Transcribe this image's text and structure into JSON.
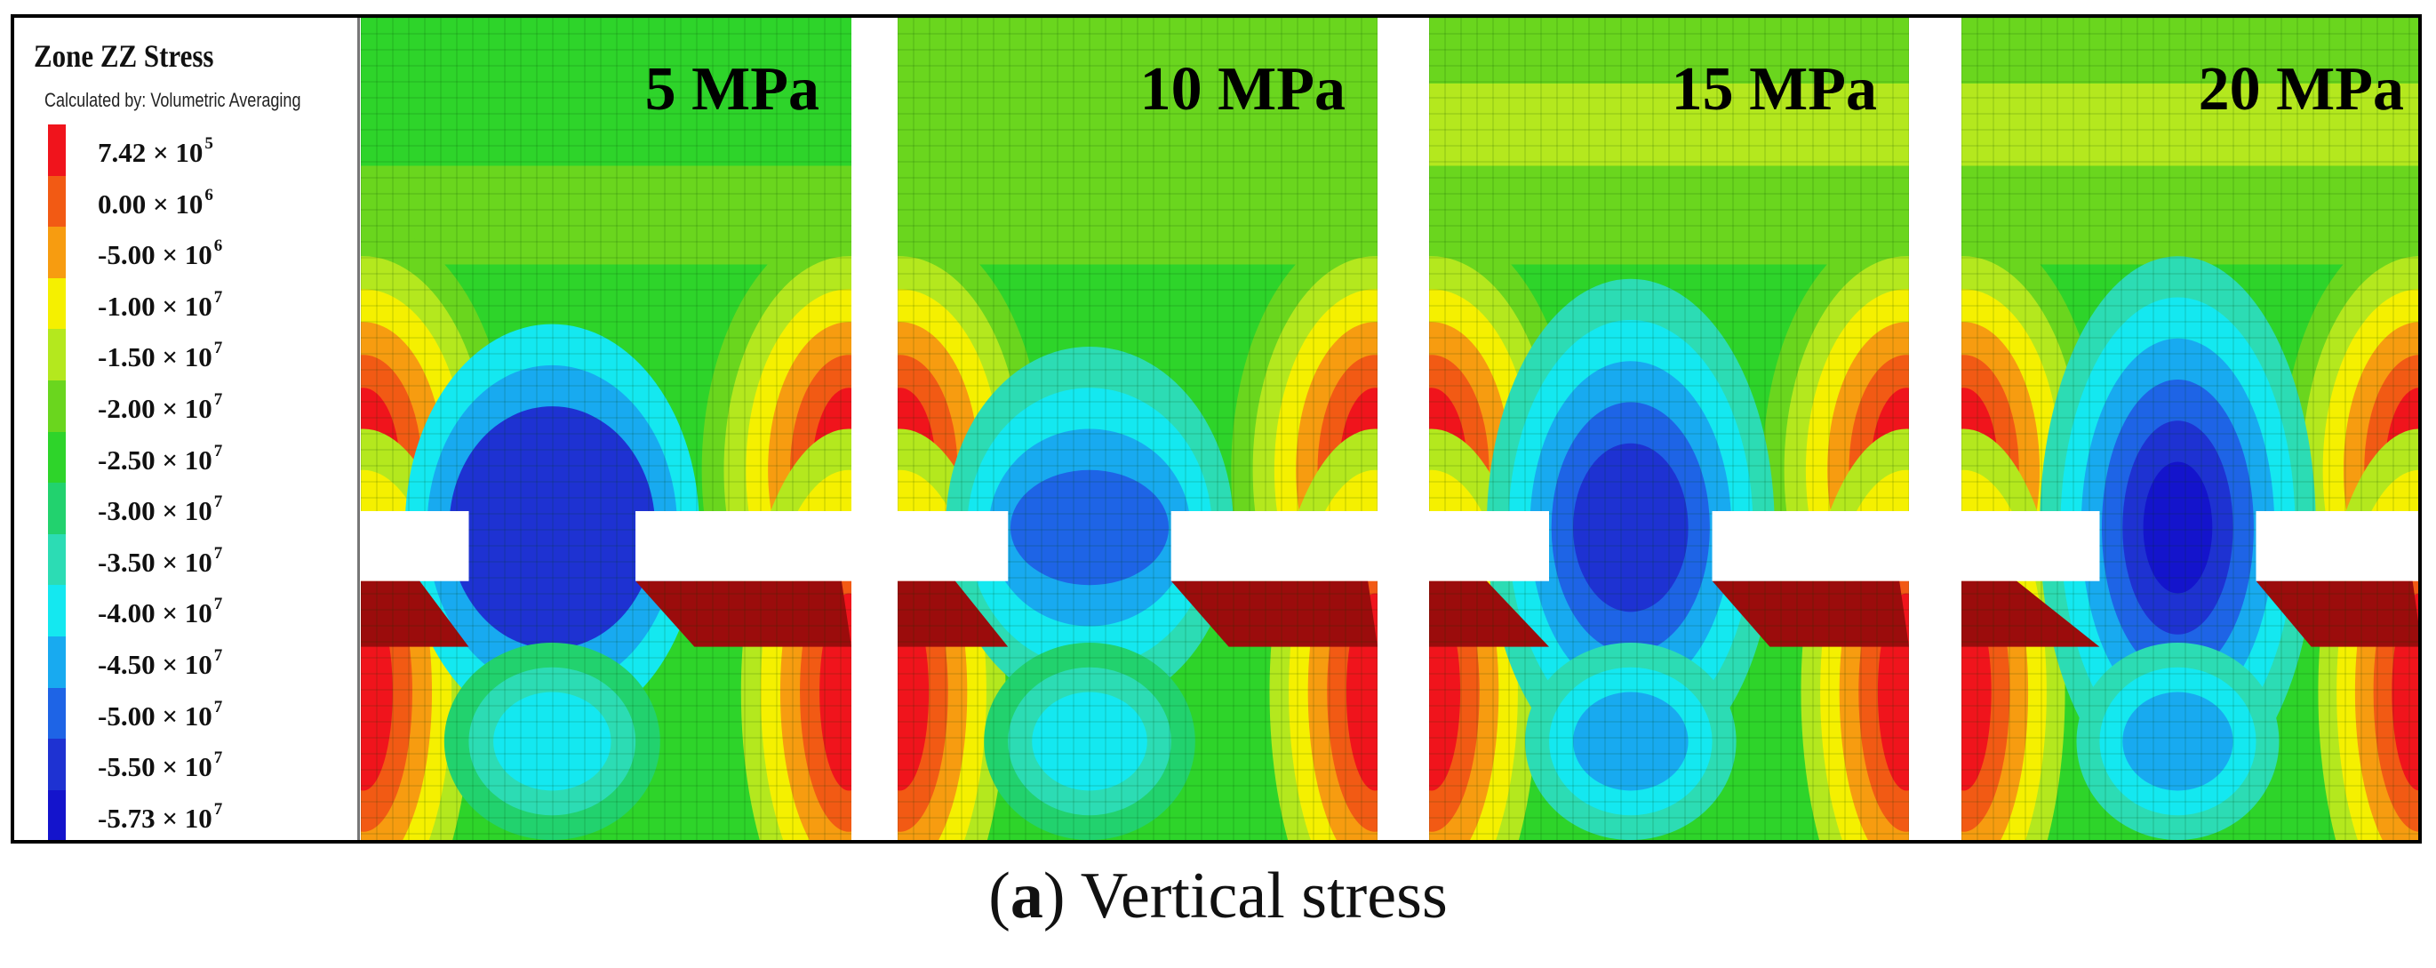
{
  "legend": {
    "title": "Zone ZZ Stress",
    "subtitle": "Calculated by: Volumetric Averaging",
    "entries": [
      {
        "mantissa": "7.42 × 10",
        "exponent": "5",
        "color": "#f0141c"
      },
      {
        "mantissa": "0.00 × 10",
        "exponent": "6",
        "color": "#f25a14"
      },
      {
        "mantissa": "-5.00 × 10",
        "exponent": "6",
        "color": "#f79c10"
      },
      {
        "mantissa": "-1.00 × 10",
        "exponent": "7",
        "color": "#f5f000"
      },
      {
        "mantissa": "-1.50 × 10",
        "exponent": "7",
        "color": "#b4e81e"
      },
      {
        "mantissa": "-2.00 × 10",
        "exponent": "7",
        "color": "#6ad61e"
      },
      {
        "mantissa": "-2.50 × 10",
        "exponent": "7",
        "color": "#2ed42a"
      },
      {
        "mantissa": "-3.00 × 10",
        "exponent": "7",
        "color": "#22d26e"
      },
      {
        "mantissa": "-3.50 × 10",
        "exponent": "7",
        "color": "#2cdcb4"
      },
      {
        "mantissa": "-4.00 × 10",
        "exponent": "7",
        "color": "#14e8f0"
      },
      {
        "mantissa": "-4.50 × 10",
        "exponent": "7",
        "color": "#18aaf0"
      },
      {
        "mantissa": "-5.00 × 10",
        "exponent": "7",
        "color": "#1e64e6"
      },
      {
        "mantissa": "-5.50 × 10",
        "exponent": "7",
        "color": "#1e32d2"
      },
      {
        "mantissa": "-5.73 × 10",
        "exponent": "7",
        "color": "#1414cc"
      }
    ]
  },
  "panels": [
    {
      "label": "5 MPa"
    },
    {
      "label": "10 MPa"
    },
    {
      "label": "15 MPa"
    },
    {
      "label": "20 MPa"
    }
  ],
  "caption": {
    "letter": "a",
    "text": " Vertical stress"
  }
}
